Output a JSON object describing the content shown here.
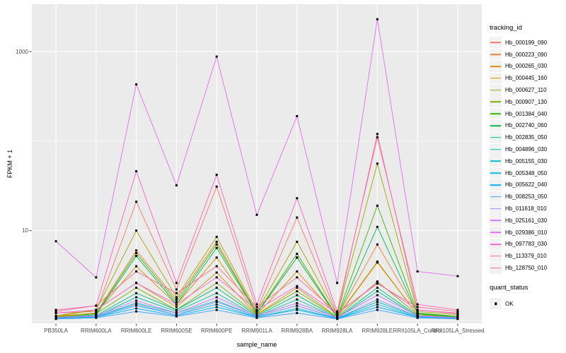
{
  "figure": {
    "background": "#ffffff",
    "panel_background": "#ebebeb",
    "gridline_color": "#ffffff",
    "axis_tick_color": "#333333",
    "tick_label_color": "#4d4d4d"
  },
  "legend": {
    "tracking_title": "tracking_id",
    "quant_title": "quant_status",
    "quant_ok_label": "OK",
    "key_fill": "#f2f2f2",
    "quant_glyph": "black-square"
  },
  "chart_data": {
    "type": "line",
    "title": "",
    "xlabel": "sample_name",
    "ylabel": "FPKM + 1",
    "y_scale": "log10",
    "ylim": [
      0.92,
      3380
    ],
    "grid": true,
    "legend_position": "right",
    "point_shape": "filled-square",
    "point_color": "#000000",
    "y_ticks": [
      {
        "label": "1000",
        "value": 1000
      },
      {
        "label": "10",
        "value": 10
      }
    ],
    "y_minor_gridlines": [
      1,
      100
    ],
    "x_categories": [
      "PB350LA",
      "RRIM600LA",
      "RRIM600LE",
      "RRIM600SE",
      "RRIM600PE",
      "RRIM901LA",
      "RRIM928BA",
      "RRIM928LA",
      "RRIM928LE",
      "RRII105LA_Control",
      "RRII105LA_Stressed"
    ],
    "series": [
      {
        "name": "Hb_000199_090",
        "color": "#F8766D",
        "values": [
          1.2,
          1.25,
          21,
          2.2,
          31,
          1.3,
          14,
          1.15,
          120,
          1.3,
          1.2
        ]
      },
      {
        "name": "Hb_000223_090",
        "color": "#EA8331",
        "values": [
          1.1,
          1.2,
          6.0,
          1.7,
          7.5,
          1.2,
          5.0,
          1.1,
          7.0,
          1.2,
          1.1
        ]
      },
      {
        "name": "Hb_000265_030",
        "color": "#D89000",
        "values": [
          1.1,
          1.2,
          4.0,
          1.5,
          5.0,
          1.15,
          3.5,
          1.1,
          4.5,
          1.15,
          1.1
        ]
      },
      {
        "name": "Hb_000445_160",
        "color": "#C09B00",
        "values": [
          1.1,
          1.3,
          2.6,
          1.4,
          3.4,
          1.15,
          2.3,
          1.08,
          4.4,
          1.15,
          1.08
        ]
      },
      {
        "name": "Hb_000627_110",
        "color": "#A3A500",
        "values": [
          1.12,
          1.3,
          10.0,
          1.8,
          8.5,
          1.25,
          7.5,
          1.15,
          56,
          1.25,
          1.15
        ]
      },
      {
        "name": "Hb_000907_130",
        "color": "#7CAE00",
        "values": [
          1.08,
          1.18,
          2.3,
          1.3,
          2.6,
          1.15,
          2.1,
          1.08,
          2.7,
          1.15,
          1.08
        ]
      },
      {
        "name": "Hb_001384_040",
        "color": "#39B600",
        "values": [
          1.08,
          1.18,
          5.6,
          1.6,
          7.0,
          1.2,
          5.5,
          1.1,
          19,
          1.2,
          1.1
        ]
      },
      {
        "name": "Hb_002740_060",
        "color": "#00BB4E",
        "values": [
          1.06,
          1.15,
          5.2,
          1.5,
          6.4,
          1.18,
          5.0,
          1.08,
          11,
          1.18,
          1.08
        ]
      },
      {
        "name": "Hb_002835_050",
        "color": "#00BF7D",
        "values": [
          1.06,
          1.12,
          2.0,
          1.3,
          2.3,
          1.12,
          1.9,
          1.06,
          2.3,
          1.12,
          1.06
        ]
      },
      {
        "name": "Hb_004896_030",
        "color": "#00C1A3",
        "values": [
          1.05,
          1.1,
          1.8,
          1.25,
          2.0,
          1.1,
          1.7,
          1.05,
          2.1,
          1.1,
          1.05
        ]
      },
      {
        "name": "Hb_005155_030",
        "color": "#00BFC4",
        "values": [
          1.05,
          1.1,
          1.55,
          1.2,
          1.65,
          1.1,
          1.45,
          1.05,
          1.6,
          1.1,
          1.05
        ]
      },
      {
        "name": "Hb_005348_050",
        "color": "#00BAE0",
        "values": [
          1.04,
          1.08,
          1.45,
          1.15,
          1.5,
          1.08,
          1.35,
          1.04,
          1.5,
          1.08,
          1.04
        ]
      },
      {
        "name": "Hb_005622_040",
        "color": "#00B0F6",
        "values": [
          1.04,
          1.08,
          1.35,
          1.12,
          1.4,
          1.08,
          1.3,
          1.04,
          1.4,
          1.08,
          1.04
        ]
      },
      {
        "name": "Hb_008253_050",
        "color": "#35A2FF",
        "values": [
          1.03,
          1.06,
          1.25,
          1.1,
          1.3,
          1.06,
          1.2,
          1.03,
          1.3,
          1.06,
          1.03
        ]
      },
      {
        "name": "Hb_011618_010",
        "color": "#9590FF",
        "values": [
          1.05,
          1.1,
          1.5,
          1.15,
          1.6,
          1.1,
          1.45,
          1.05,
          1.7,
          1.1,
          1.05
        ]
      },
      {
        "name": "Hb_025161_030",
        "color": "#C77CFF",
        "values": [
          1.08,
          1.12,
          1.65,
          1.2,
          1.8,
          1.12,
          1.55,
          1.07,
          1.9,
          1.12,
          1.07
        ]
      },
      {
        "name": "Hb_029386_010",
        "color": "#E76BF3",
        "values": [
          7.6,
          3.0,
          430,
          32,
          880,
          15,
          190,
          2.6,
          2300,
          3.5,
          3.1
        ]
      },
      {
        "name": "Hb_097783_030",
        "color": "#FA62DB",
        "values": [
          1.2,
          1.3,
          2.6,
          1.5,
          3.0,
          1.3,
          2.4,
          1.18,
          2.6,
          1.3,
          1.18
        ]
      },
      {
        "name": "Hb_113379_010",
        "color": "#FF62BC",
        "values": [
          1.3,
          1.45,
          46,
          2.6,
          42,
          1.5,
          23,
          1.25,
          110,
          1.5,
          1.3
        ]
      },
      {
        "name": "Hb_128750_010",
        "color": "#FF6A98",
        "values": [
          1.25,
          1.45,
          3.5,
          2.0,
          4.0,
          1.4,
          3.0,
          1.2,
          2.55,
          1.4,
          1.25
        ]
      }
    ]
  }
}
